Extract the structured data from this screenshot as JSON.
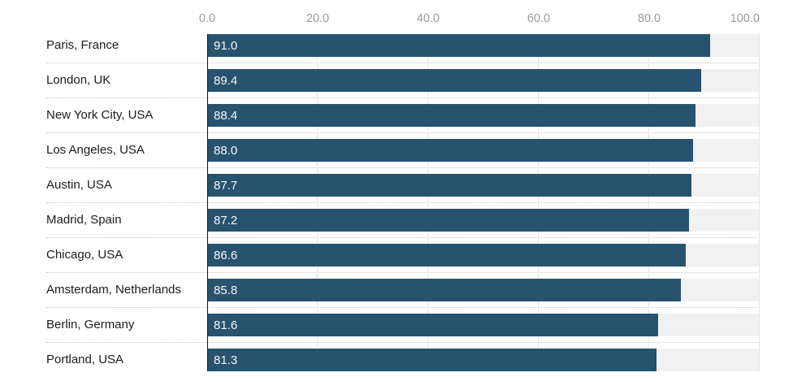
{
  "chart_data": {
    "type": "bar",
    "orientation": "horizontal",
    "title": "",
    "xlabel": "",
    "ylabel": "",
    "categories": [
      "Paris, France",
      "London, UK",
      "New York City, USA",
      "Los Angeles, USA",
      "Austin, USA",
      "Madrid, Spain",
      "Chicago, USA",
      "Amsterdam, Netherlands",
      "Berlin, Germany",
      "Portland, USA"
    ],
    "values": [
      91.0,
      89.4,
      88.4,
      88.0,
      87.7,
      87.2,
      86.6,
      85.8,
      81.6,
      81.3
    ],
    "value_labels": [
      "91.0",
      "89.4",
      "88.4",
      "88.0",
      "87.7",
      "87.2",
      "86.6",
      "85.8",
      "81.6",
      "81.3"
    ],
    "x_ticks": [
      0,
      20,
      40,
      60,
      80,
      100
    ],
    "x_tick_labels": [
      "0.0",
      "20.0",
      "40.0",
      "60.0",
      "80.0",
      "100.0"
    ],
    "xlim": [
      0,
      100
    ],
    "grid": true,
    "legend": false,
    "axis_position": "top"
  },
  "colors": {
    "bar": "#28536e",
    "track": "#f1f1f1",
    "grid": "#e3e4e4",
    "baseline": "#141414",
    "separator": "#c9c9c9",
    "axis_text": "#9a9a9a",
    "label_text": "#1c1c1c",
    "value_text": "#f2f7fa"
  }
}
